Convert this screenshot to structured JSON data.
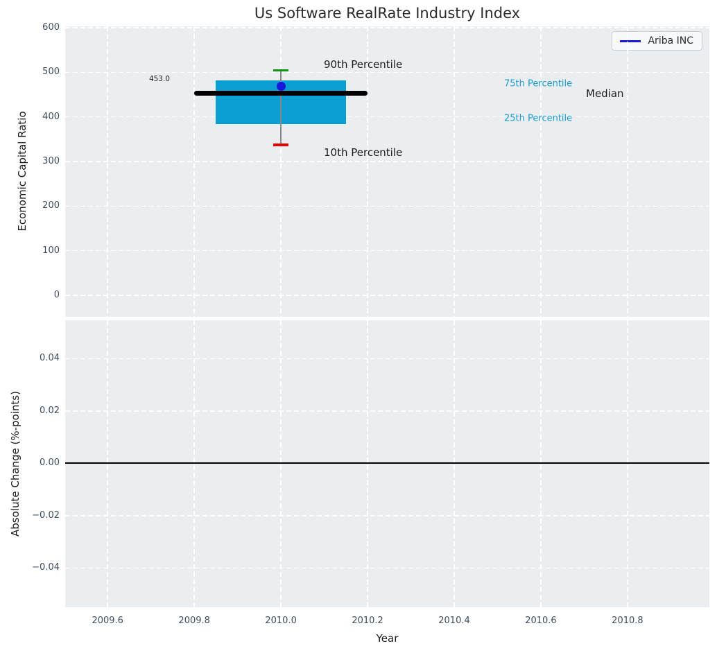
{
  "chart_data": [
    {
      "type": "box",
      "title": "Us Software RealRate Industry Index",
      "ylabel": "Economic Capital Ratio",
      "xlim": [
        2009.502,
        2010.989
      ],
      "ylim": [
        -48,
        603
      ],
      "grid": true,
      "legend": {
        "label": "Ariba INC",
        "color": "#1717dd",
        "position": "upper right"
      },
      "yticks": [
        {
          "v": 600,
          "label": "600"
        },
        {
          "v": 500,
          "label": "500"
        },
        {
          "v": 400,
          "label": "400"
        },
        {
          "v": 300,
          "label": "300"
        },
        {
          "v": 200,
          "label": "200"
        },
        {
          "v": 100,
          "label": "100"
        },
        {
          "v": 0,
          "label": "0"
        }
      ],
      "box": {
        "x": 2010.0,
        "box_half_width": 0.15,
        "median_line_half_width": 0.2,
        "median": 453.0,
        "q1": 384,
        "q3": 482,
        "p10": 337,
        "p90": 504,
        "company_value": 468
      },
      "annotations": {
        "median_value": {
          "text": "453.0"
        },
        "p90": {
          "text": "90th Percentile"
        },
        "p10": {
          "text": "10th Percentile"
        },
        "p75": {
          "text": "75th Percentile"
        },
        "p25": {
          "text": "25th Percentile"
        },
        "median": {
          "text": "Median"
        }
      },
      "colors": {
        "box_fill": "#0a9fd2",
        "median_line": "#000000",
        "company_marker": "#1717dd",
        "p90_cap": "#0d930d",
        "p10_cap": "#e60000",
        "whisker": "#888888",
        "percentile_text": "#1b9cd0"
      }
    },
    {
      "type": "line",
      "ylabel": "Absolute Change (%-points)",
      "xlabel": "Year",
      "xlim": [
        2009.502,
        2010.989
      ],
      "ylim": [
        -0.055,
        0.0547
      ],
      "grid": true,
      "zero_line": 0.0,
      "yticks": [
        {
          "v": 0.04,
          "label": "0.04"
        },
        {
          "v": 0.02,
          "label": "0.02"
        },
        {
          "v": 0.0,
          "label": "0.00"
        },
        {
          "v": -0.02,
          "label": "−0.02"
        },
        {
          "v": -0.04,
          "label": "−0.04"
        }
      ],
      "xticks": [
        {
          "v": 2009.6,
          "label": "2009.6"
        },
        {
          "v": 2009.8,
          "label": "2009.8"
        },
        {
          "v": 2010.0,
          "label": "2010.0"
        },
        {
          "v": 2010.2,
          "label": "2010.2"
        },
        {
          "v": 2010.4,
          "label": "2010.4"
        },
        {
          "v": 2010.6,
          "label": "2010.6"
        },
        {
          "v": 2010.8,
          "label": "2010.8"
        }
      ]
    }
  ],
  "theme": {
    "plot_bg": "#eaeef0",
    "grid_color": "#ffffff",
    "tick_label_color": "#3d4c5f",
    "text_color": "#1a1a1a",
    "title_color": "#2b2b2b"
  }
}
